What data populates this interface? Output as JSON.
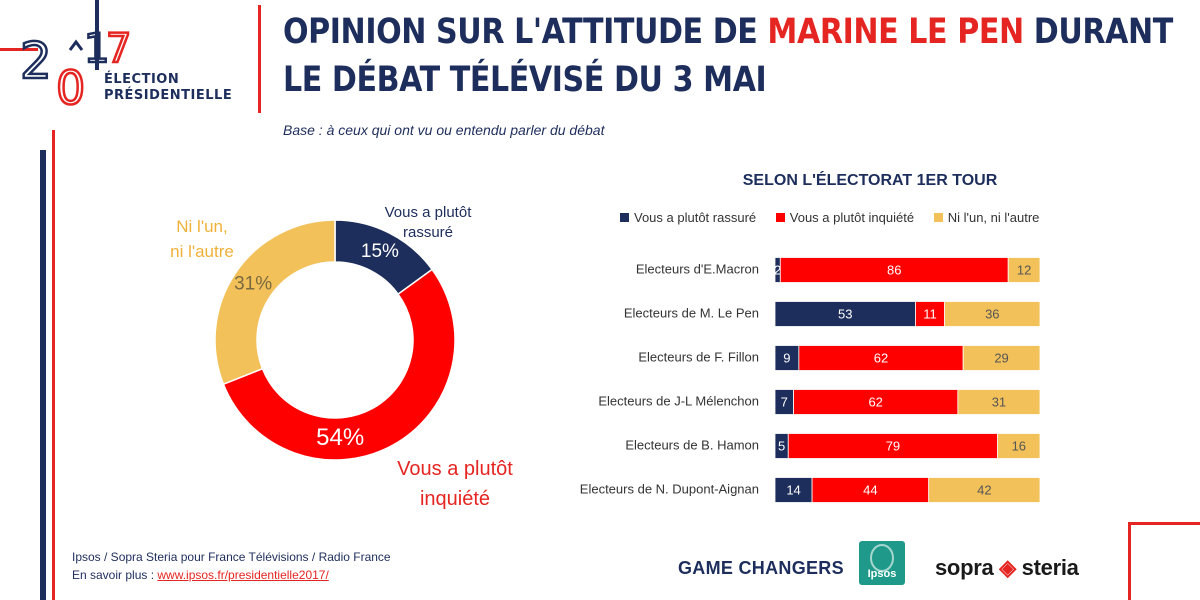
{
  "header": {
    "logo_year_digits": [
      "2",
      "0",
      "1",
      "7"
    ],
    "logo_line1": "ÉLECTION",
    "logo_line2": "PRÉSIDENTIELLE",
    "title_part1": "OPINION SUR L'ATTITUDE DE ",
    "title_highlight": "MARINE LE PEN",
    "title_part2": " DURANT",
    "title_line2": "LE DÉBAT TÉLÉVISÉ DU 3 MAI",
    "subtitle": "Base : à ceux qui ont vu ou entendu parler du débat"
  },
  "colors": {
    "navy": "#1d2d5c",
    "red": "#e52521",
    "bar_red": "#ff0000",
    "yellow": "#f3c15a",
    "teal": "#1f9a8a"
  },
  "chart_data": [
    {
      "type": "pie",
      "subtype": "donut",
      "slices": [
        {
          "label": "Vous a plutôt rassuré",
          "display_label": [
            "Vous a plutôt",
            "rassuré"
          ],
          "value": 15,
          "value_label": "15%",
          "color": "#1d2d5c"
        },
        {
          "label": "Vous a plutôt inquiété",
          "display_label": [
            "Vous a plutôt",
            "inquiété"
          ],
          "value": 54,
          "value_label": "54%",
          "color": "#ff0000"
        },
        {
          "label": "Ni l'un, ni l'autre",
          "display_label": [
            "Ni l'un,",
            "ni l'autre"
          ],
          "value": 31,
          "value_label": "31%",
          "color": "#f3c15a"
        }
      ]
    },
    {
      "type": "bar",
      "orientation": "horizontal",
      "stacked": true,
      "title": "SELON L'ÉLECTORAT 1ER TOUR",
      "categories": [
        "Electeurs d'E.Macron",
        "Electeurs de M. Le Pen",
        "Electeurs de F. Fillon",
        "Electeurs de J-L Mélenchon",
        "Electeurs de B. Hamon",
        "Electeurs de N. Dupont-Aignan"
      ],
      "series": [
        {
          "name": "Vous a plutôt rassuré",
          "color": "#1d2d5c",
          "values": [
            2,
            53,
            9,
            7,
            5,
            14
          ]
        },
        {
          "name": "Vous a plutôt inquiété",
          "color": "#ff0000",
          "values": [
            86,
            11,
            62,
            62,
            79,
            44
          ]
        },
        {
          "name": "Ni l'un, ni l'autre",
          "color": "#f3c15a",
          "values": [
            12,
            36,
            29,
            31,
            16,
            42
          ]
        }
      ],
      "legend_position": "top"
    }
  ],
  "footer": {
    "source": "Ipsos / Sopra Steria pour France Télévisions / Radio France",
    "more_label": "En savoir plus : ",
    "more_link": "www.ipsos.fr/presidentielle2017/",
    "game_changers": "GAME CHANGERS",
    "ipsos": "Ipsos",
    "sopra_part1": "sopra",
    "sopra_part2": "steria"
  }
}
